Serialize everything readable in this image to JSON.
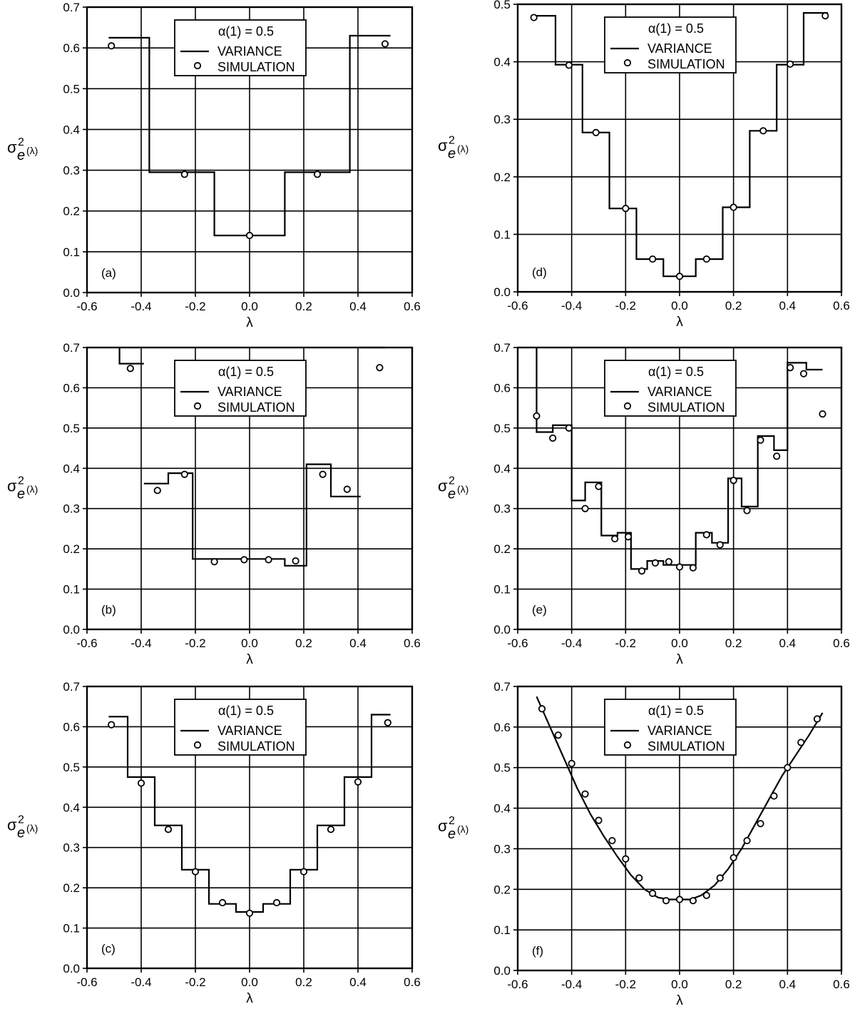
{
  "chart_data": [
    {
      "type": "line",
      "panel_label": "(a)",
      "xlabel": "λ",
      "ylabel_main": "σ",
      "ylabel_sup": "2",
      "ylabel_sub": "e",
      "ylabel_arg": "(λ)",
      "xlim": [
        -0.6,
        0.6
      ],
      "ylim": [
        0.0,
        0.7
      ],
      "xticks": [
        "-0.6",
        "-0.4",
        "-0.2",
        "0.0",
        "0.2",
        "0.4",
        "0.6"
      ],
      "yticks": [
        "0.0",
        "0.1",
        "0.2",
        "0.3",
        "0.4",
        "0.5",
        "0.6",
        "0.7"
      ],
      "grid": true,
      "legend_position": "top-center",
      "legend_title": "α(1) = 0.5",
      "series": [
        {
          "name": "VARIANCE",
          "style": "line",
          "x": [
            -0.52,
            -0.37,
            -0.37,
            -0.13,
            -0.13,
            0.13,
            0.13,
            0.37,
            0.37,
            0.52
          ],
          "y": [
            0.625,
            0.625,
            0.295,
            0.295,
            0.14,
            0.14,
            0.295,
            0.295,
            0.63,
            0.63
          ]
        },
        {
          "name": "SIMULATION",
          "style": "circle",
          "x": [
            -0.51,
            -0.24,
            0.0,
            0.25,
            0.5
          ],
          "y": [
            0.605,
            0.29,
            0.14,
            0.29,
            0.61
          ]
        }
      ]
    },
    {
      "type": "line",
      "panel_label": "(d)",
      "xlabel": "λ",
      "ylabel_main": "σ",
      "ylabel_sup": "2",
      "ylabel_sub": "e",
      "ylabel_arg": "(λ)",
      "xlim": [
        -0.6,
        0.6
      ],
      "ylim": [
        0.0,
        0.5
      ],
      "xticks": [
        "-0.6",
        "-0.4",
        "-0.2",
        "0.0",
        "0.2",
        "0.4",
        "0.6"
      ],
      "yticks": [
        "0.0",
        "0.1",
        "0.2",
        "0.3",
        "0.4",
        "0.5"
      ],
      "grid": true,
      "legend_position": "top-center",
      "legend_title": "α(1) = 0.5",
      "series": [
        {
          "name": "VARIANCE",
          "style": "line",
          "x": [
            -0.55,
            -0.46,
            -0.46,
            -0.36,
            -0.36,
            -0.26,
            -0.26,
            -0.16,
            -0.16,
            -0.06,
            -0.06,
            0.06,
            0.06,
            0.16,
            0.16,
            0.26,
            0.26,
            0.36,
            0.36,
            0.46,
            0.46,
            0.55
          ],
          "y": [
            0.48,
            0.48,
            0.395,
            0.395,
            0.277,
            0.277,
            0.145,
            0.145,
            0.057,
            0.057,
            0.027,
            0.027,
            0.057,
            0.057,
            0.147,
            0.147,
            0.28,
            0.28,
            0.395,
            0.395,
            0.485,
            0.485
          ]
        },
        {
          "name": "SIMULATION",
          "style": "circle",
          "x": [
            -0.54,
            -0.41,
            -0.31,
            -0.2,
            -0.1,
            0.0,
            0.1,
            0.2,
            0.31,
            0.41,
            0.54
          ],
          "y": [
            0.477,
            0.394,
            0.277,
            0.145,
            0.057,
            0.027,
            0.057,
            0.147,
            0.28,
            0.396,
            0.48
          ]
        }
      ]
    },
    {
      "type": "line",
      "panel_label": "(b)",
      "xlabel": "λ",
      "ylabel_main": "σ",
      "ylabel_sup": "2",
      "ylabel_sub": "e",
      "ylabel_arg": "(λ)",
      "xlim": [
        -0.6,
        0.6
      ],
      "ylim": [
        0.0,
        0.7
      ],
      "xticks": [
        "-0.6",
        "-0.4",
        "-0.2",
        "0.0",
        "0.2",
        "0.4",
        "0.6"
      ],
      "yticks": [
        "0.0",
        "0.1",
        "0.2",
        "0.3",
        "0.4",
        "0.5",
        "0.6",
        "0.7"
      ],
      "grid": true,
      "legend_position": "top-center",
      "legend_title": "α(1) = 0.5",
      "series": [
        {
          "name": "VARIANCE",
          "style": "line",
          "x": [
            -0.48,
            -0.48,
            -0.39,
            null,
            -0.39,
            -0.3,
            -0.3,
            -0.21,
            -0.21,
            0.13,
            0.13,
            0.21,
            0.21,
            0.3,
            0.3,
            0.41,
            null,
            0.41,
            0.5
          ],
          "y": [
            0.7,
            0.66,
            0.66,
            null,
            0.362,
            0.362,
            0.388,
            0.388,
            0.175,
            0.175,
            0.158,
            0.158,
            0.41,
            0.41,
            0.33,
            0.33,
            null,
            0.7,
            0.7
          ]
        },
        {
          "name": "SIMULATION",
          "style": "circle",
          "x": [
            -0.44,
            -0.34,
            -0.24,
            -0.13,
            -0.02,
            0.07,
            0.17,
            0.27,
            0.36,
            0.48
          ],
          "y": [
            0.648,
            0.345,
            0.385,
            0.168,
            0.173,
            0.173,
            0.17,
            0.385,
            0.348,
            0.65
          ]
        }
      ]
    },
    {
      "type": "line",
      "panel_label": "(e)",
      "xlabel": "λ",
      "ylabel_main": "σ",
      "ylabel_sup": "2",
      "ylabel_sub": "e",
      "ylabel_arg": "(λ)",
      "xlim": [
        -0.6,
        0.6
      ],
      "ylim": [
        0.0,
        0.7
      ],
      "xticks": [
        "-0.6",
        "-0.4",
        "-0.2",
        "0.0",
        "0.2",
        "0.4",
        "0.6"
      ],
      "yticks": [
        "0.0",
        "0.1",
        "0.2",
        "0.3",
        "0.4",
        "0.5",
        "0.6",
        "0.7"
      ],
      "grid": true,
      "legend_position": "top-center",
      "legend_title": "α(1) = 0.5",
      "series": [
        {
          "name": "VARIANCE",
          "style": "line",
          "x": [
            -0.53,
            -0.53,
            -0.47,
            -0.47,
            -0.4,
            -0.4,
            -0.35,
            -0.35,
            -0.29,
            -0.29,
            -0.23,
            -0.23,
            -0.18,
            -0.18,
            -0.12,
            -0.12,
            -0.06,
            -0.06,
            0.06,
            0.06,
            0.12,
            0.12,
            0.18,
            0.18,
            0.23,
            0.23,
            0.29,
            0.29,
            0.35,
            0.35,
            0.4,
            0.4,
            0.47,
            0.47,
            0.53
          ],
          "y": [
            0.7,
            0.49,
            0.49,
            0.507,
            0.507,
            0.32,
            0.32,
            0.365,
            0.365,
            0.233,
            0.233,
            0.24,
            0.24,
            0.15,
            0.15,
            0.17,
            0.17,
            0.16,
            0.16,
            0.24,
            0.24,
            0.215,
            0.215,
            0.375,
            0.375,
            0.305,
            0.305,
            0.48,
            0.48,
            0.445,
            0.445,
            0.662,
            0.662,
            0.645,
            0.645
          ]
        },
        {
          "name": "SIMULATION",
          "style": "circle",
          "x": [
            -0.53,
            -0.47,
            -0.41,
            -0.35,
            -0.3,
            -0.24,
            -0.19,
            -0.14,
            -0.09,
            -0.04,
            0.0,
            0.05,
            0.1,
            0.15,
            0.2,
            0.25,
            0.3,
            0.36,
            0.41,
            0.46,
            0.53
          ],
          "y": [
            0.53,
            0.475,
            0.5,
            0.3,
            0.355,
            0.225,
            0.23,
            0.145,
            0.165,
            0.168,
            0.155,
            0.153,
            0.235,
            0.21,
            0.37,
            0.295,
            0.47,
            0.43,
            0.65,
            0.635,
            0.535
          ]
        }
      ]
    },
    {
      "type": "line",
      "panel_label": "(c)",
      "xlabel": "λ",
      "ylabel_main": "σ",
      "ylabel_sup": "2",
      "ylabel_sub": "e",
      "ylabel_arg": "(λ)",
      "xlim": [
        -0.6,
        0.6
      ],
      "ylim": [
        0.0,
        0.7
      ],
      "xticks": [
        "-0.6",
        "-0.4",
        "-0.2",
        "0.0",
        "0.2",
        "0.4",
        "0.6"
      ],
      "yticks": [
        "0.0",
        "0.1",
        "0.2",
        "0.3",
        "0.4",
        "0.5",
        "0.6",
        "0.7"
      ],
      "grid": true,
      "legend_position": "top-center",
      "legend_title": "α(1) = 0.5",
      "series": [
        {
          "name": "VARIANCE",
          "style": "line",
          "x": [
            -0.52,
            -0.45,
            -0.45,
            -0.35,
            -0.35,
            -0.25,
            -0.25,
            -0.15,
            -0.15,
            -0.05,
            -0.05,
            0.05,
            0.05,
            0.15,
            0.15,
            0.25,
            0.25,
            0.35,
            0.35,
            0.45,
            0.45,
            0.52
          ],
          "y": [
            0.625,
            0.625,
            0.475,
            0.475,
            0.355,
            0.355,
            0.245,
            0.245,
            0.16,
            0.16,
            0.14,
            0.14,
            0.16,
            0.16,
            0.245,
            0.245,
            0.355,
            0.355,
            0.475,
            0.475,
            0.63,
            0.63
          ]
        },
        {
          "name": "SIMULATION",
          "style": "circle",
          "x": [
            -0.51,
            -0.4,
            -0.3,
            -0.2,
            -0.1,
            0.0,
            0.1,
            0.2,
            0.3,
            0.4,
            0.51
          ],
          "y": [
            0.605,
            0.46,
            0.345,
            0.24,
            0.163,
            0.137,
            0.163,
            0.24,
            0.345,
            0.463,
            0.61
          ]
        }
      ]
    },
    {
      "type": "line",
      "panel_label": "(f)",
      "xlabel": "λ",
      "ylabel_main": "σ",
      "ylabel_sup": "2",
      "ylabel_sub": "e",
      "ylabel_arg": "(λ)",
      "xlim": [
        -0.6,
        0.6
      ],
      "ylim": [
        0.0,
        0.7
      ],
      "xticks": [
        "-0.6",
        "-0.4",
        "-0.2",
        "0.0",
        "0.2",
        "0.4",
        "0.6"
      ],
      "yticks": [
        "0.0",
        "0.1",
        "0.2",
        "0.3",
        "0.4",
        "0.5",
        "0.6",
        "0.7"
      ],
      "grid": true,
      "legend_position": "top-center",
      "legend_title": "α(1) = 0.5",
      "series": [
        {
          "name": "VARIANCE",
          "style": "line",
          "x": [
            -0.53,
            -0.48,
            -0.43,
            -0.38,
            -0.33,
            -0.28,
            -0.23,
            -0.18,
            -0.13,
            -0.08,
            -0.04,
            0.0,
            0.04,
            0.08,
            0.13,
            0.18,
            0.23,
            0.28,
            0.33,
            0.38,
            0.43,
            0.48,
            0.53
          ],
          "y": [
            0.675,
            0.6,
            0.525,
            0.45,
            0.385,
            0.33,
            0.28,
            0.235,
            0.2,
            0.18,
            0.175,
            0.175,
            0.175,
            0.185,
            0.21,
            0.25,
            0.3,
            0.36,
            0.42,
            0.48,
            0.53,
            0.58,
            0.635
          ]
        },
        {
          "name": "SIMULATION",
          "style": "circle",
          "x": [
            -0.51,
            -0.45,
            -0.4,
            -0.35,
            -0.3,
            -0.25,
            -0.2,
            -0.15,
            -0.1,
            -0.05,
            0.0,
            0.05,
            0.1,
            0.15,
            0.2,
            0.25,
            0.3,
            0.35,
            0.4,
            0.45,
            0.51
          ],
          "y": [
            0.645,
            0.58,
            0.51,
            0.435,
            0.37,
            0.32,
            0.275,
            0.228,
            0.19,
            0.172,
            0.175,
            0.172,
            0.185,
            0.228,
            0.278,
            0.32,
            0.362,
            0.43,
            0.5,
            0.562,
            0.62
          ]
        }
      ]
    }
  ]
}
